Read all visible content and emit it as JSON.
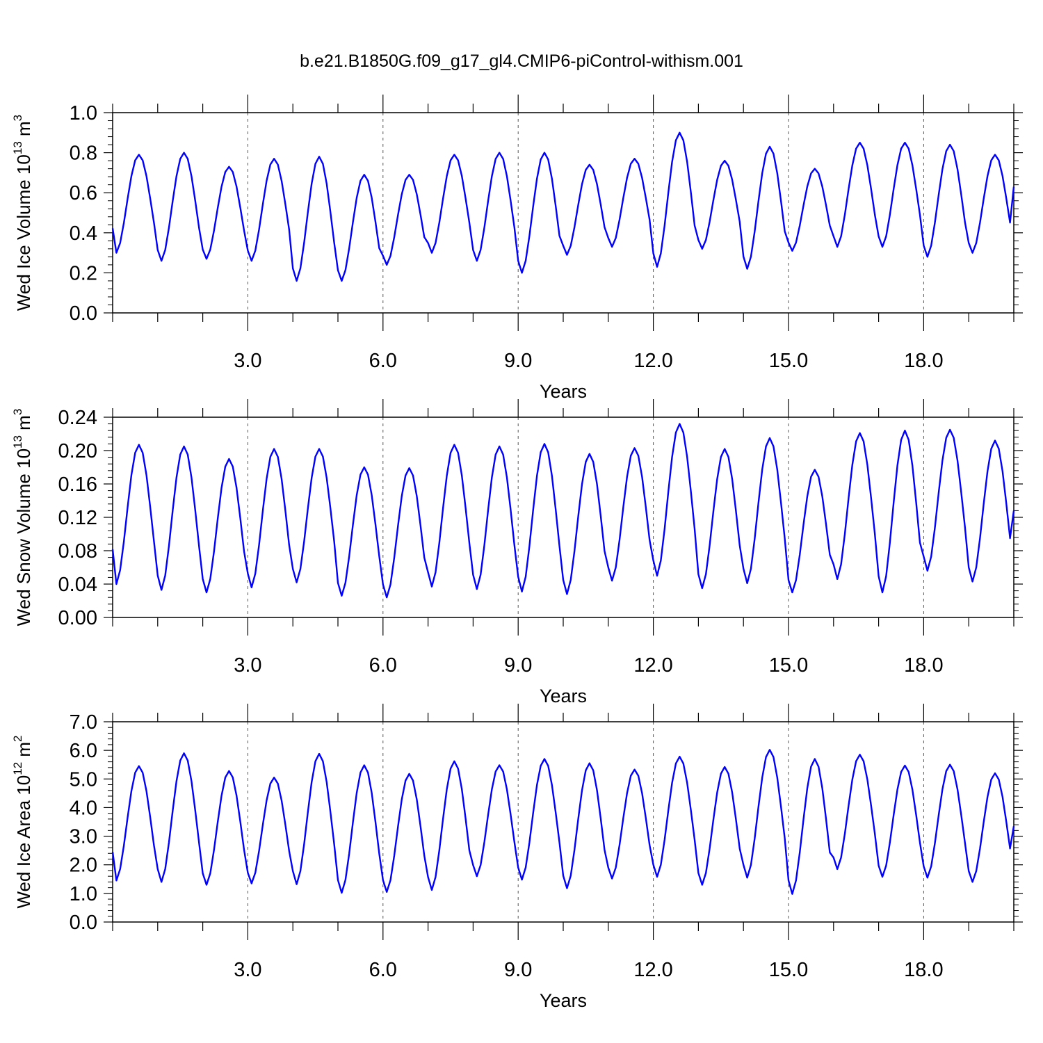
{
  "title": "b.e21.B1850G.f09_g17_gl4.CMIP6-piControl-withism.001",
  "colors": {
    "line": "#0000ff",
    "axis": "#000000",
    "grid": "#555555"
  },
  "chart_data": [
    {
      "type": "line",
      "xlabel": "Years",
      "ylabel_main": "Wed Ice Volume 10",
      "ylabel_exp": "13",
      "ylabel_unit": " m",
      "ylabel_unit_exp": "3",
      "xlim": [
        0,
        20
      ],
      "ylim": [
        0.0,
        1.0
      ],
      "xticks": [
        3,
        6,
        9,
        12,
        15,
        18
      ],
      "xtick_labels": [
        "3.0",
        "6.0",
        "9.0",
        "12.0",
        "15.0",
        "18.0"
      ],
      "yticks": [
        0.0,
        0.2,
        0.4,
        0.6,
        0.8,
        1.0
      ],
      "ytick_labels": [
        "0.0",
        "0.2",
        "0.4",
        "0.6",
        "0.8",
        "1.0"
      ],
      "year_min": [
        0.3,
        0.26,
        0.27,
        0.26,
        0.16,
        0.16,
        0.24,
        0.3,
        0.26,
        0.2,
        0.29,
        0.33,
        0.23,
        0.32,
        0.22,
        0.31,
        0.33,
        0.33,
        0.28,
        0.3
      ],
      "year_max": [
        0.79,
        0.8,
        0.73,
        0.77,
        0.78,
        0.69,
        0.69,
        0.79,
        0.8,
        0.8,
        0.74,
        0.77,
        0.9,
        0.76,
        0.83,
        0.72,
        0.85,
        0.85,
        0.84,
        0.79
      ],
      "end_value": 0.63,
      "series": [
        {
          "values": []
        }
      ]
    },
    {
      "type": "line",
      "xlabel": "Years",
      "ylabel_main": "Wed Snow Volume 10",
      "ylabel_exp": "13",
      "ylabel_unit": " m",
      "ylabel_unit_exp": "3",
      "xlim": [
        0,
        20
      ],
      "ylim": [
        0.0,
        0.24
      ],
      "xticks": [
        3,
        6,
        9,
        12,
        15,
        18
      ],
      "xtick_labels": [
        "3.0",
        "6.0",
        "9.0",
        "12.0",
        "15.0",
        "18.0"
      ],
      "yticks": [
        0.0,
        0.04,
        0.08,
        0.12,
        0.16,
        0.2,
        0.24
      ],
      "ytick_labels": [
        "0.00",
        "0.04",
        "0.08",
        "0.12",
        "0.16",
        "0.20",
        "0.24"
      ],
      "year_min": [
        0.04,
        0.033,
        0.03,
        0.036,
        0.042,
        0.026,
        0.024,
        0.037,
        0.034,
        0.031,
        0.028,
        0.044,
        0.05,
        0.035,
        0.041,
        0.03,
        0.046,
        0.03,
        0.056,
        0.043
      ],
      "year_max": [
        0.207,
        0.205,
        0.19,
        0.202,
        0.202,
        0.18,
        0.179,
        0.207,
        0.205,
        0.208,
        0.196,
        0.203,
        0.232,
        0.202,
        0.215,
        0.177,
        0.221,
        0.224,
        0.225,
        0.212
      ],
      "end_value": 0.128,
      "series": [
        {
          "values": []
        }
      ]
    },
    {
      "type": "line",
      "xlabel": "Years",
      "ylabel_main": "Wed Ice Area 10",
      "ylabel_exp": "12",
      "ylabel_unit": " m",
      "ylabel_unit_exp": "2",
      "xlim": [
        0,
        20
      ],
      "ylim": [
        0.0,
        7.0
      ],
      "xticks": [
        3,
        6,
        9,
        12,
        15,
        18
      ],
      "xtick_labels": [
        "3.0",
        "6.0",
        "9.0",
        "12.0",
        "15.0",
        "18.0"
      ],
      "yticks": [
        0.0,
        1.0,
        2.0,
        3.0,
        4.0,
        5.0,
        6.0,
        7.0
      ],
      "ytick_labels": [
        "0.0",
        "1.0",
        "2.0",
        "3.0",
        "4.0",
        "5.0",
        "6.0",
        "7.0"
      ],
      "year_min": [
        1.45,
        1.4,
        1.3,
        1.35,
        1.32,
        1.02,
        1.05,
        1.12,
        1.6,
        1.48,
        1.18,
        1.52,
        1.58,
        1.3,
        1.55,
        0.98,
        1.85,
        1.58,
        1.55,
        1.4
      ],
      "year_max": [
        5.45,
        5.9,
        5.28,
        5.05,
        5.88,
        5.48,
        5.18,
        5.62,
        5.48,
        5.7,
        5.55,
        5.33,
        5.78,
        5.42,
        6.02,
        5.7,
        5.85,
        5.47,
        5.5,
        5.2
      ],
      "end_value": 3.35,
      "series": [
        {
          "values": []
        }
      ]
    }
  ]
}
